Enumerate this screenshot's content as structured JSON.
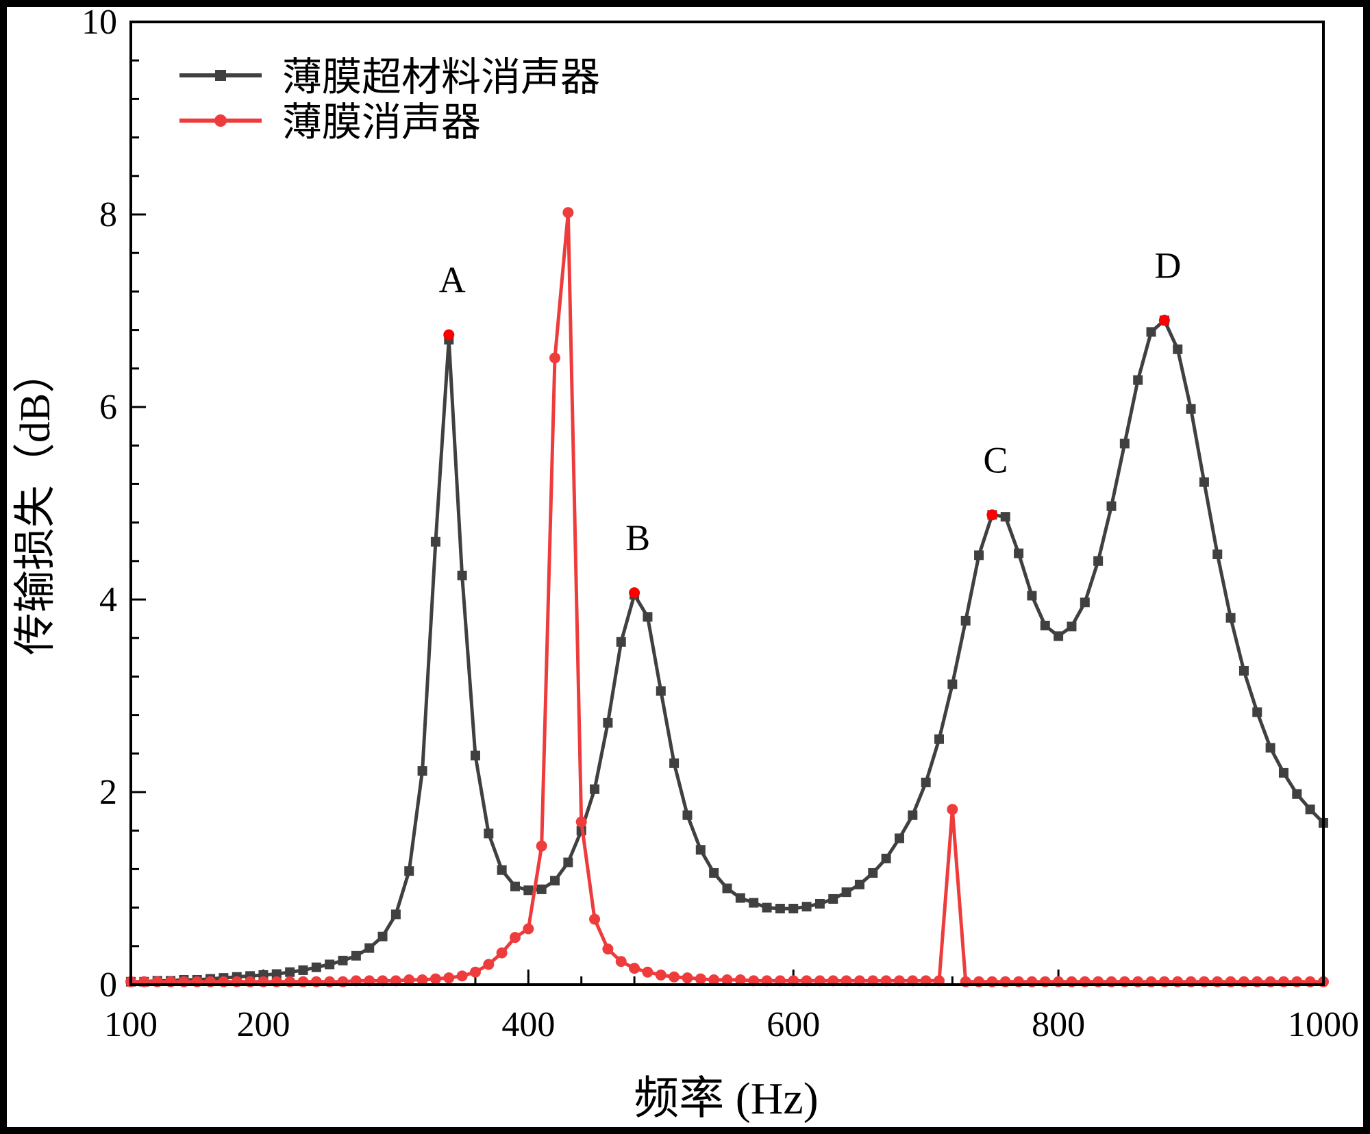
{
  "chart_data": {
    "type": "line",
    "title": "",
    "xlabel": "频率 (Hz)",
    "ylabel": "传输损失（dB）",
    "xlim": [
      100,
      1000
    ],
    "ylim": [
      0,
      10
    ],
    "x_ticks": [
      100,
      200,
      400,
      600,
      800,
      1000
    ],
    "y_ticks": [
      0,
      2,
      4,
      6,
      8,
      10
    ],
    "grid": false,
    "legend_placement": "top-left",
    "x": [
      100,
      110,
      120,
      130,
      140,
      150,
      160,
      170,
      180,
      190,
      200,
      210,
      220,
      230,
      240,
      250,
      260,
      270,
      280,
      290,
      300,
      310,
      320,
      330,
      340,
      350,
      360,
      370,
      380,
      390,
      400,
      410,
      420,
      430,
      440,
      450,
      460,
      470,
      480,
      490,
      500,
      510,
      520,
      530,
      540,
      550,
      560,
      570,
      580,
      590,
      600,
      610,
      620,
      630,
      640,
      650,
      660,
      670,
      680,
      690,
      700,
      710,
      720,
      730,
      740,
      750,
      760,
      770,
      780,
      790,
      800,
      810,
      820,
      830,
      840,
      850,
      860,
      870,
      880,
      890,
      900,
      910,
      920,
      930,
      940,
      950,
      960,
      970,
      980,
      990,
      1000
    ],
    "series": [
      {
        "name": "薄膜超材料消声器",
        "color": "#404040",
        "marker": "square",
        "values": [
          0.03,
          0.03,
          0.04,
          0.04,
          0.05,
          0.05,
          0.06,
          0.07,
          0.08,
          0.09,
          0.1,
          0.11,
          0.13,
          0.15,
          0.18,
          0.21,
          0.25,
          0.3,
          0.38,
          0.5,
          0.73,
          1.18,
          2.22,
          4.6,
          6.7,
          4.25,
          2.38,
          1.57,
          1.19,
          1.02,
          0.98,
          0.99,
          1.08,
          1.27,
          1.6,
          2.03,
          2.72,
          3.56,
          4.05,
          3.82,
          3.05,
          2.3,
          1.76,
          1.4,
          1.16,
          1.0,
          0.9,
          0.85,
          0.8,
          0.79,
          0.79,
          0.81,
          0.84,
          0.89,
          0.96,
          1.04,
          1.16,
          1.31,
          1.52,
          1.76,
          2.1,
          2.55,
          3.12,
          3.78,
          4.46,
          4.88,
          4.86,
          4.48,
          4.04,
          3.73,
          3.62,
          3.72,
          3.97,
          4.4,
          4.97,
          5.62,
          6.28,
          6.78,
          6.9,
          6.6,
          5.98,
          5.22,
          4.47,
          3.81,
          3.26,
          2.83,
          2.46,
          2.2,
          1.98,
          1.82,
          1.68
        ]
      },
      {
        "name": "薄膜消声器",
        "color": "#ee3b3b",
        "marker": "circle",
        "values": [
          0.03,
          0.03,
          0.03,
          0.03,
          0.03,
          0.03,
          0.03,
          0.03,
          0.03,
          0.03,
          0.03,
          0.03,
          0.03,
          0.03,
          0.03,
          0.03,
          0.03,
          0.04,
          0.04,
          0.04,
          0.04,
          0.05,
          0.05,
          0.06,
          0.07,
          0.09,
          0.13,
          0.21,
          0.33,
          0.49,
          0.58,
          1.44,
          6.51,
          8.02,
          1.69,
          0.68,
          0.37,
          0.24,
          0.17,
          0.13,
          0.1,
          0.08,
          0.07,
          0.06,
          0.05,
          0.05,
          0.05,
          0.04,
          0.04,
          0.04,
          0.04,
          0.04,
          0.04,
          0.04,
          0.04,
          0.04,
          0.04,
          0.04,
          0.04,
          0.04,
          0.04,
          0.04,
          1.82,
          0.03,
          0.03,
          0.03,
          0.03,
          0.03,
          0.03,
          0.03,
          0.03,
          0.03,
          0.03,
          0.03,
          0.03,
          0.03,
          0.03,
          0.03,
          0.03,
          0.03,
          0.03,
          0.03,
          0.03,
          0.03,
          0.03,
          0.03,
          0.03,
          0.03,
          0.03,
          0.03,
          0.03
        ]
      }
    ],
    "annotations": [
      {
        "label": "A",
        "x": 340,
        "y": 6.75
      },
      {
        "label": "B",
        "x": 480,
        "y": 4.07
      },
      {
        "label": "C",
        "x": 750,
        "y": 4.88
      },
      {
        "label": "D",
        "x": 880,
        "y": 6.9
      }
    ],
    "annotation_marker_color": "#ff0000"
  }
}
